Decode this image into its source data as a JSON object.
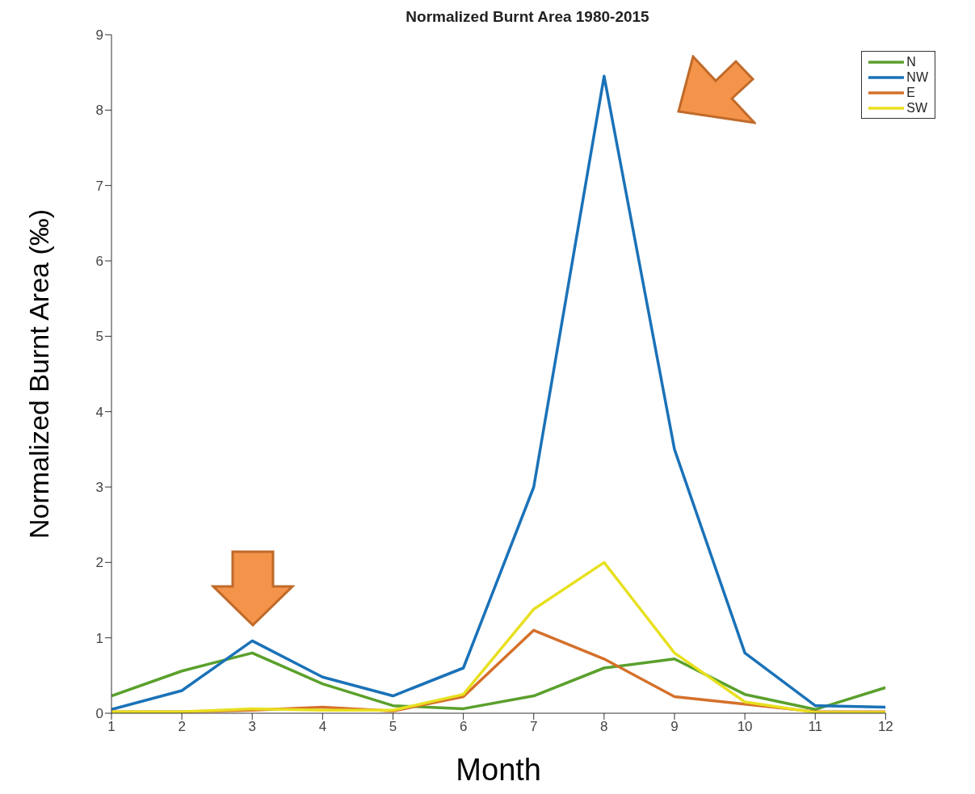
{
  "chart_data": {
    "type": "line",
    "title": "Normalized Burnt Area 1980-2015",
    "xlabel": "Month",
    "ylabel": "Normalized Burnt Area (‰)",
    "x": [
      1,
      2,
      3,
      4,
      5,
      6,
      7,
      8,
      9,
      10,
      11,
      12
    ],
    "xlim": [
      1,
      12
    ],
    "xticks": [
      1,
      2,
      3,
      4,
      5,
      6,
      7,
      8,
      9,
      10,
      11,
      12
    ],
    "ylim": [
      0,
      9
    ],
    "yticks": [
      0,
      1,
      2,
      3,
      4,
      5,
      6,
      7,
      8,
      9
    ],
    "grid": false,
    "legend": "top right",
    "marker": "none",
    "line_style": "solid",
    "series": [
      {
        "name": "N",
        "color": "#5aa02c",
        "values": [
          0.23,
          0.56,
          0.8,
          0.39,
          0.1,
          0.06,
          0.23,
          0.6,
          0.72,
          0.25,
          0.05,
          0.34
        ]
      },
      {
        "name": "NW",
        "color": "#1a72b8",
        "values": [
          0.05,
          0.3,
          0.96,
          0.48,
          0.23,
          0.6,
          3.0,
          8.45,
          3.5,
          0.8,
          0.1,
          0.08
        ]
      },
      {
        "name": "E",
        "color": "#d5702a",
        "values": [
          0.02,
          0.02,
          0.04,
          0.08,
          0.03,
          0.22,
          1.1,
          0.72,
          0.22,
          0.12,
          0.02,
          0.02
        ]
      },
      {
        "name": "SW",
        "color": "#e8e020",
        "values": [
          0.02,
          0.02,
          0.06,
          0.04,
          0.04,
          0.25,
          1.38,
          2.0,
          0.8,
          0.15,
          0.01,
          0.01
        ]
      }
    ]
  }
}
